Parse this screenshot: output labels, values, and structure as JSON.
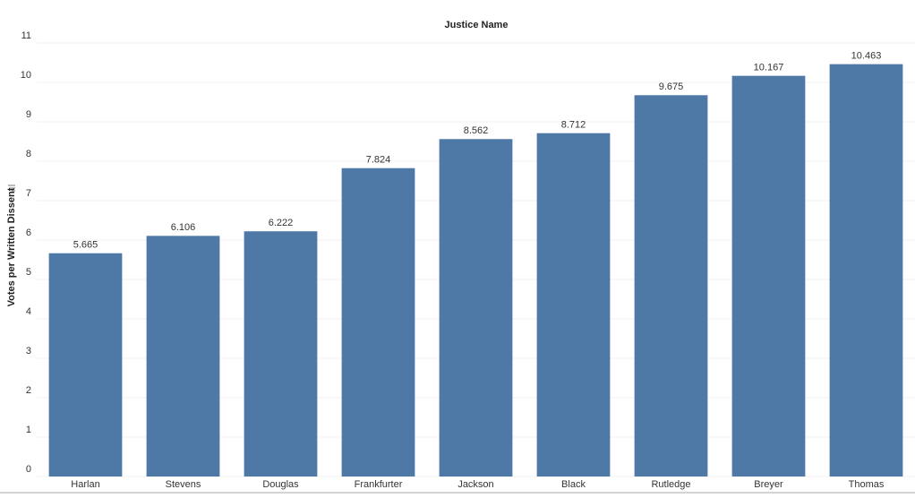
{
  "chart_data": {
    "type": "bar",
    "title": "Justice Name",
    "y_label": "Votes per Written Dissent",
    "categories": [
      "Harlan",
      "Stevens",
      "Douglas",
      "Frankfurter",
      "Jackson",
      "Black",
      "Rutledge",
      "Breyer",
      "Thomas"
    ],
    "values": [
      5.665,
      6.106,
      6.222,
      7.824,
      8.562,
      8.712,
      9.675,
      10.167,
      10.463
    ],
    "color": "#4e79a7",
    "ylim": [
      0,
      11
    ],
    "yticks": [
      0,
      1,
      2,
      3,
      4,
      5,
      6,
      7,
      8,
      9,
      10,
      11
    ],
    "grid": true
  }
}
